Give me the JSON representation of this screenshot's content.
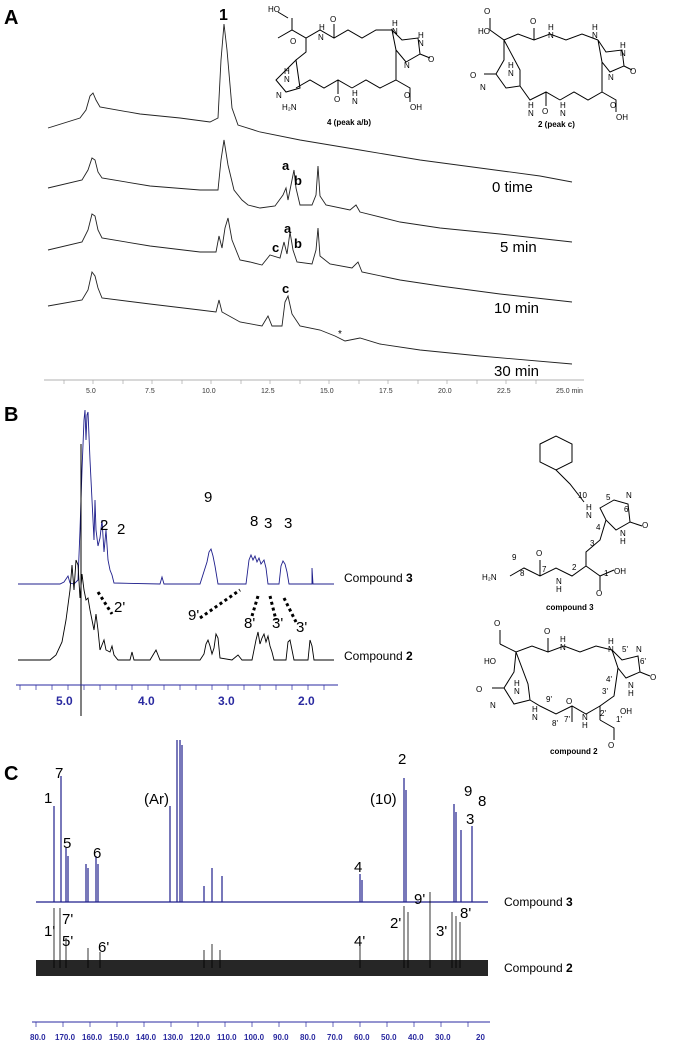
{
  "panels": {
    "a": "A",
    "b": "B",
    "c": "C"
  },
  "hplc": {
    "peak_main": "1",
    "traces": [
      "0 time",
      "5 min",
      "10 min",
      "30 min"
    ],
    "peak_labels": {
      "a": "a",
      "b": "b",
      "c": "c",
      "star": "*"
    },
    "x_ticks": [
      "5.0",
      "7.5",
      "10.0",
      "12.5",
      "15.0",
      "17.5",
      "20.0",
      "22.5",
      "25.0 min"
    ],
    "struct_4_caption": "4 (peak a/b)",
    "struct_2_caption": "2 (peak c)"
  },
  "hnmr": {
    "top_label_prefix": "Compound ",
    "top_label_num": "3",
    "bottom_label_prefix": "Compound ",
    "bottom_label_num": "2",
    "top_peaks": [
      "2",
      "2",
      "9",
      "8",
      "3",
      "3"
    ],
    "bottom_peaks": [
      "2'",
      "9'",
      "8'",
      "3'",
      "3'"
    ],
    "x_ticks": [
      "5.0",
      "4.0",
      "3.0",
      "2.0"
    ],
    "struct_3_caption": "compound 3",
    "struct_2_caption": "compound 2"
  },
  "cnmr": {
    "top_label_prefix": "Compound ",
    "top_label_num": "3",
    "bottom_label_prefix": "Compound ",
    "bottom_label_num": "2",
    "top_peaks": [
      "1",
      "7",
      "5",
      "6",
      "(Ar)",
      "(10)",
      "4",
      "2",
      "9",
      "3",
      "8"
    ],
    "bottom_peaks": [
      "1'",
      "7'",
      "5'",
      "6'",
      "2'",
      "4'",
      "9'",
      "3'",
      "8'"
    ],
    "x_ticks": [
      "80.0",
      "170.0",
      "160.0",
      "150.0",
      "140.0",
      "130.0",
      "120.0",
      "110.0",
      "100.0",
      "90.0",
      "80.0",
      "70.0",
      "60.0",
      "50.0",
      "40.0",
      "30.0",
      "20"
    ]
  },
  "colors": {
    "blue": "#1f1f8c",
    "black": "#000000",
    "axis_blue": "#2a2aa0"
  }
}
